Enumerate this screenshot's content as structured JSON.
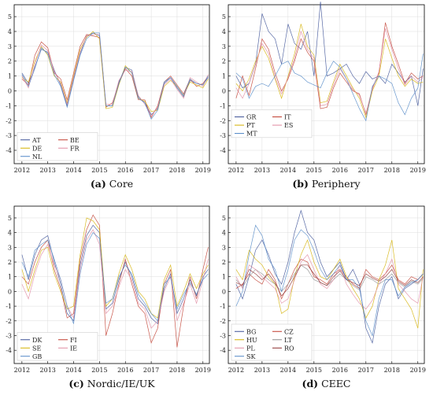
{
  "chart_data": [
    {
      "type": "line",
      "caption_letter": "(a)",
      "caption_text": "Core",
      "x": [
        2012,
        2012.25,
        2012.5,
        2012.75,
        2013,
        2013.25,
        2013.5,
        2013.75,
        2014,
        2014.25,
        2014.5,
        2014.75,
        2015,
        2015.25,
        2015.5,
        2015.75,
        2016,
        2016.25,
        2016.5,
        2016.75,
        2017,
        2017.25,
        2017.5,
        2017.75,
        2018,
        2018.25,
        2018.5,
        2018.75,
        2019,
        2019.2
      ],
      "xticks": [
        2012,
        2013,
        2014,
        2015,
        2016,
        2017,
        2018,
        2019
      ],
      "yticks": [
        -4,
        -3,
        -2,
        -1,
        0,
        1,
        2,
        3,
        4,
        5
      ],
      "xlim": [
        2011.7,
        2019.25
      ],
      "ylim": [
        -4.9,
        5.8
      ],
      "legend_position": "bottom-left",
      "legend_columns": 2,
      "series": [
        {
          "name": "AT",
          "color": "#3a4f95",
          "values": [
            1.2,
            0.5,
            1.6,
            2.8,
            2.6,
            1.4,
            0.4,
            -1.0,
            0.8,
            2.5,
            3.7,
            3.9,
            3.7,
            -1.0,
            -1.0,
            0.6,
            1.6,
            1.4,
            -0.4,
            -0.8,
            -1.6,
            -1.2,
            0.5,
            0.9,
            0.2,
            -0.4,
            0.7,
            0.5,
            0.4,
            0.9
          ]
        },
        {
          "name": "BE",
          "color": "#c0392b",
          "values": [
            0.8,
            0.4,
            2.4,
            3.3,
            2.9,
            1.2,
            0.8,
            -0.6,
            1.2,
            3.0,
            3.8,
            3.7,
            3.6,
            -1.1,
            -0.8,
            0.5,
            1.5,
            1.0,
            -0.6,
            -0.6,
            -1.8,
            -1.0,
            0.6,
            1.0,
            0.4,
            -0.2,
            0.8,
            0.3,
            0.5,
            1.0
          ]
        },
        {
          "name": "DE",
          "color": "#d4b000",
          "values": [
            0.9,
            0.6,
            2.0,
            3.0,
            2.4,
            1.0,
            0.6,
            -0.8,
            1.0,
            2.8,
            3.6,
            4.0,
            3.5,
            -1.2,
            -1.1,
            0.4,
            1.7,
            1.2,
            -0.5,
            -0.7,
            -1.4,
            -1.3,
            0.3,
            0.7,
            0.3,
            -0.3,
            0.6,
            0.4,
            0.2,
            0.8
          ]
        },
        {
          "name": "FR",
          "color": "#e08aa0",
          "values": [
            1.0,
            0.2,
            1.8,
            3.1,
            2.7,
            1.3,
            0.5,
            -0.9,
            0.9,
            2.6,
            3.7,
            3.8,
            3.8,
            -0.9,
            -0.9,
            0.7,
            1.4,
            1.3,
            -0.3,
            -0.9,
            -1.7,
            -1.1,
            0.4,
            0.8,
            0.1,
            -0.5,
            0.9,
            0.6,
            0.3,
            1.1
          ]
        },
        {
          "name": "NL",
          "color": "#4f86c6",
          "values": [
            1.1,
            0.3,
            1.5,
            2.9,
            2.5,
            1.1,
            0.3,
            -1.1,
            0.7,
            2.4,
            3.5,
            3.9,
            3.9,
            -1.0,
            -1.0,
            0.5,
            1.6,
            1.2,
            -0.5,
            -0.8,
            -1.9,
            -1.3,
            0.6,
            0.9,
            0.3,
            -0.3,
            0.8,
            0.5,
            0.4,
            1.0
          ]
        }
      ]
    },
    {
      "type": "line",
      "caption_letter": "(b)",
      "caption_text": "Periphery",
      "x": [
        2012,
        2012.25,
        2012.5,
        2012.75,
        2013,
        2013.25,
        2013.5,
        2013.75,
        2014,
        2014.25,
        2014.5,
        2014.75,
        2015,
        2015.25,
        2015.5,
        2015.75,
        2016,
        2016.25,
        2016.5,
        2016.75,
        2017,
        2017.25,
        2017.5,
        2017.75,
        2018,
        2018.25,
        2018.5,
        2018.75,
        2019,
        2019.2
      ],
      "xticks": [
        2012,
        2013,
        2014,
        2015,
        2016,
        2017,
        2018,
        2019
      ],
      "yticks": [
        -4,
        -3,
        -2,
        -1,
        0,
        1,
        2,
        3,
        4,
        5
      ],
      "xlim": [
        2011.7,
        2019.25
      ],
      "ylim": [
        -4.9,
        5.8
      ],
      "legend_position": "lower-left",
      "legend_columns": 2,
      "series": [
        {
          "name": "GR",
          "color": "#3a4f95",
          "values": [
            1.0,
            0.2,
            0.5,
            1.8,
            5.2,
            4.0,
            3.5,
            1.8,
            4.5,
            3.2,
            2.8,
            4.0,
            1.0,
            6.0,
            1.0,
            1.2,
            1.5,
            1.8,
            1.0,
            0.5,
            1.3,
            0.8,
            1.0,
            0.5,
            1.8,
            1.2,
            0.6,
            1.0,
            -1.0,
            1.5
          ]
        },
        {
          "name": "IT",
          "color": "#c0392b",
          "values": [
            -0.5,
            1.0,
            -0.3,
            1.5,
            3.5,
            2.8,
            1.2,
            0.0,
            0.8,
            2.0,
            3.5,
            2.6,
            2.0,
            -1.2,
            -1.1,
            0.2,
            1.2,
            0.6,
            0.0,
            -0.2,
            -1.6,
            0.2,
            1.2,
            4.6,
            3.0,
            1.8,
            0.5,
            1.2,
            0.8,
            1.0
          ]
        },
        {
          "name": "PT",
          "color": "#d4b000",
          "values": [
            0.5,
            0.0,
            0.8,
            2.0,
            3.0,
            2.2,
            0.8,
            -0.5,
            1.0,
            2.5,
            4.5,
            3.0,
            2.4,
            -0.8,
            -0.7,
            0.6,
            1.8,
            1.0,
            0.2,
            -0.5,
            -1.8,
            0.0,
            1.0,
            3.5,
            2.2,
            1.0,
            0.3,
            0.8,
            0.5,
            0.6
          ]
        },
        {
          "name": "ES",
          "color": "#e08aa0",
          "values": [
            0.2,
            -0.5,
            0.5,
            1.8,
            3.2,
            2.5,
            0.9,
            -0.2,
            0.9,
            2.2,
            4.0,
            2.8,
            2.2,
            -1.0,
            -0.9,
            0.4,
            1.5,
            0.8,
            0.1,
            -0.3,
            -1.5,
            0.1,
            1.3,
            4.2,
            2.8,
            1.5,
            0.4,
            1.0,
            0.6,
            0.9
          ]
        },
        {
          "name": "MT",
          "color": "#4f86c6",
          "values": [
            1.2,
            0.8,
            -0.5,
            0.3,
            0.5,
            0.3,
            1.0,
            1.8,
            2.0,
            1.2,
            1.0,
            0.6,
            0.4,
            0.2,
            1.2,
            2.0,
            1.6,
            0.8,
            -0.2,
            -1.2,
            -2.0,
            0.3,
            1.0,
            0.8,
            0.5,
            -0.8,
            -1.6,
            -0.5,
            0.2,
            2.5
          ]
        }
      ]
    },
    {
      "type": "line",
      "caption_letter": "(c)",
      "caption_text": "Nordic/IE/UK",
      "x": [
        2012,
        2012.25,
        2012.5,
        2012.75,
        2013,
        2013.25,
        2013.5,
        2013.75,
        2014,
        2014.25,
        2014.5,
        2014.75,
        2015,
        2015.25,
        2015.5,
        2015.75,
        2016,
        2016.25,
        2016.5,
        2016.75,
        2017,
        2017.25,
        2017.5,
        2017.75,
        2018,
        2018.25,
        2018.5,
        2018.75,
        2019,
        2019.2
      ],
      "xticks": [
        2012,
        2013,
        2014,
        2015,
        2016,
        2017,
        2018,
        2019
      ],
      "yticks": [
        -4,
        -3,
        -2,
        -1,
        0,
        1,
        2,
        3,
        4,
        5
      ],
      "xlim": [
        2011.7,
        2019.25
      ],
      "ylim": [
        -4.9,
        5.8
      ],
      "legend_position": "bottom-left",
      "legend_columns": 2,
      "series": [
        {
          "name": "DK",
          "color": "#3a4f95",
          "values": [
            2.5,
            0.8,
            2.5,
            3.5,
            3.8,
            2.0,
            0.5,
            -1.5,
            -2.0,
            1.8,
            3.8,
            4.5,
            4.0,
            -1.2,
            -0.8,
            0.8,
            2.0,
            1.0,
            -0.5,
            -1.0,
            -1.8,
            -2.2,
            0.2,
            1.2,
            -1.5,
            -0.5,
            0.8,
            -0.3,
            1.0,
            1.5
          ]
        },
        {
          "name": "FI",
          "color": "#c0392b",
          "values": [
            1.0,
            0.5,
            2.0,
            3.0,
            3.5,
            1.5,
            0.2,
            -1.8,
            -1.5,
            2.2,
            4.2,
            5.2,
            4.5,
            -3.0,
            -1.5,
            0.5,
            2.2,
            0.5,
            -1.0,
            -1.5,
            -3.5,
            -2.5,
            0.5,
            1.5,
            -3.8,
            -1.0,
            1.0,
            -0.5,
            1.5,
            3.0
          ]
        },
        {
          "name": "SE",
          "color": "#d4b000",
          "values": [
            1.5,
            0.0,
            1.5,
            2.8,
            3.0,
            1.2,
            0.0,
            -1.2,
            -1.0,
            2.5,
            5.0,
            4.8,
            4.2,
            -1.0,
            -0.5,
            1.2,
            2.5,
            1.5,
            0.0,
            -0.5,
            -1.5,
            -1.8,
            0.8,
            1.8,
            -1.0,
            0.0,
            1.2,
            0.2,
            1.2,
            1.8
          ]
        },
        {
          "name": "IE",
          "color": "#e08aa0",
          "values": [
            0.5,
            -0.5,
            1.2,
            2.5,
            3.2,
            1.8,
            0.8,
            -1.0,
            -1.8,
            1.5,
            3.5,
            4.2,
            3.2,
            -1.5,
            -1.0,
            0.3,
            1.5,
            0.8,
            -0.8,
            -1.2,
            -2.5,
            -2.0,
            0.0,
            1.0,
            -2.0,
            -0.8,
            0.5,
            -0.8,
            0.8,
            2.2
          ]
        },
        {
          "name": "GB",
          "color": "#4f86c6",
          "values": [
            2.0,
            1.0,
            2.8,
            3.2,
            3.5,
            2.2,
            0.8,
            -1.0,
            -2.2,
            1.2,
            3.2,
            4.0,
            3.6,
            -0.8,
            -0.5,
            1.0,
            1.8,
            1.2,
            -0.2,
            -0.8,
            -1.5,
            -2.0,
            0.5,
            1.0,
            -1.2,
            -0.2,
            0.6,
            -0.2,
            0.8,
            1.2
          ]
        }
      ]
    },
    {
      "type": "line",
      "caption_letter": "(d)",
      "caption_text": "CEEC",
      "x": [
        2012,
        2012.25,
        2012.5,
        2012.75,
        2013,
        2013.25,
        2013.5,
        2013.75,
        2014,
        2014.25,
        2014.5,
        2014.75,
        2015,
        2015.25,
        2015.5,
        2015.75,
        2016,
        2016.25,
        2016.5,
        2016.75,
        2017,
        2017.25,
        2017.5,
        2017.75,
        2018,
        2018.25,
        2018.5,
        2018.75,
        2019,
        2019.2
      ],
      "xticks": [
        2012,
        2013,
        2014,
        2015,
        2016,
        2017,
        2018,
        2019
      ],
      "yticks": [
        -4,
        -3,
        -2,
        -1,
        0,
        1,
        2,
        3,
        4,
        5
      ],
      "xlim": [
        2011.7,
        2019.25
      ],
      "ylim": [
        -4.9,
        5.8
      ],
      "legend_position": "bottom-left",
      "legend_columns": 2,
      "series": [
        {
          "name": "BG",
          "color": "#3a4f95",
          "values": [
            0.5,
            -0.5,
            1.0,
            2.8,
            3.5,
            2.5,
            1.2,
            0.5,
            2.0,
            4.0,
            5.5,
            4.0,
            3.5,
            2.0,
            1.0,
            1.5,
            2.0,
            0.8,
            1.5,
            0.5,
            -2.5,
            -3.5,
            -1.0,
            0.5,
            1.0,
            -0.5,
            0.2,
            0.5,
            0.8,
            1.2
          ]
        },
        {
          "name": "CZ",
          "color": "#c0392b",
          "values": [
            0.2,
            0.5,
            1.2,
            0.8,
            0.5,
            1.5,
            0.8,
            -0.5,
            0.5,
            1.5,
            2.2,
            2.0,
            1.0,
            0.8,
            0.5,
            1.2,
            1.5,
            1.0,
            0.5,
            0.2,
            1.5,
            1.0,
            0.8,
            1.2,
            1.8,
            0.8,
            0.5,
            1.0,
            0.8,
            1.2
          ]
        },
        {
          "name": "HU",
          "color": "#d4b000",
          "values": [
            1.5,
            0.8,
            2.8,
            2.2,
            1.8,
            1.0,
            0.5,
            -1.5,
            -1.2,
            1.0,
            2.5,
            3.5,
            2.0,
            1.0,
            0.8,
            1.5,
            2.2,
            1.0,
            0.2,
            -0.5,
            -1.8,
            -1.0,
            0.8,
            1.8,
            3.5,
            0.2,
            -0.5,
            -1.2,
            -2.5,
            1.5
          ]
        },
        {
          "name": "LT",
          "color": "#8c8c8c",
          "values": [
            0.8,
            0.3,
            1.0,
            1.5,
            1.2,
            0.8,
            0.5,
            0.0,
            0.5,
            1.2,
            1.8,
            1.5,
            0.8,
            0.6,
            0.4,
            0.8,
            1.2,
            0.8,
            0.4,
            0.1,
            1.0,
            0.8,
            0.5,
            0.8,
            1.2,
            0.6,
            0.3,
            0.7,
            0.5,
            0.9
          ]
        },
        {
          "name": "PL",
          "color": "#e08aa0",
          "values": [
            1.0,
            0.2,
            1.8,
            1.5,
            1.0,
            0.6,
            0.2,
            -0.8,
            -0.5,
            0.8,
            2.0,
            2.5,
            1.5,
            0.5,
            0.2,
            0.8,
            1.8,
            0.5,
            -0.2,
            -0.8,
            -1.2,
            -0.6,
            0.5,
            1.2,
            2.2,
            0.5,
            0.0,
            -0.5,
            -0.8,
            1.0
          ]
        },
        {
          "name": "RO",
          "color": "#8c2d2d",
          "values": [
            0.6,
            0.4,
            1.5,
            1.2,
            0.8,
            1.2,
            0.6,
            -0.3,
            0.2,
            1.0,
            1.8,
            1.8,
            1.2,
            0.6,
            0.4,
            1.0,
            1.4,
            0.8,
            0.6,
            0.4,
            1.2,
            0.9,
            0.7,
            1.0,
            1.5,
            0.7,
            0.4,
            0.8,
            0.6,
            1.0
          ]
        },
        {
          "name": "SK",
          "color": "#4f86c6",
          "values": [
            -1.0,
            0.0,
            2.5,
            4.5,
            3.8,
            2.2,
            1.5,
            0.0,
            1.5,
            3.5,
            4.2,
            3.8,
            2.8,
            1.5,
            0.8,
            1.2,
            1.8,
            0.8,
            0.8,
            0.2,
            -2.0,
            -3.0,
            -0.5,
            0.8,
            0.8,
            -0.3,
            0.3,
            0.6,
            0.8,
            1.2
          ]
        }
      ]
    }
  ]
}
